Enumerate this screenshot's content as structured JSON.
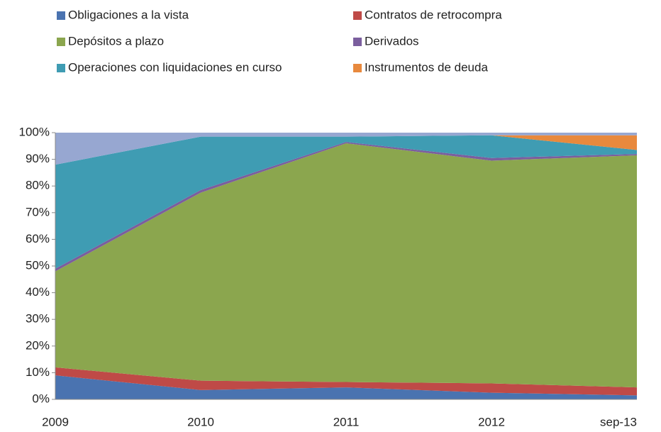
{
  "chart_data": {
    "type": "stacked_area",
    "categories": [
      "2009",
      "2010",
      "2011",
      "2012",
      "sep-13"
    ],
    "series": [
      {
        "name": "Obligaciones a la vista",
        "color": "#4a73b0",
        "values": [
          9,
          3.5,
          4.5,
          2.5,
          1.5
        ]
      },
      {
        "name": "Contratos de retrocompra",
        "color": "#bf4a47",
        "values": [
          3,
          3.5,
          2,
          3.5,
          3
        ]
      },
      {
        "name": "Depósitos a plazo",
        "color": "#8ba64e",
        "values": [
          36,
          70.5,
          89.5,
          83.5,
          87
        ]
      },
      {
        "name": "Derivados",
        "color": "#7b5e9e",
        "values": [
          1,
          1,
          0.5,
          1,
          0.5
        ]
      },
      {
        "name": "Operaciones con liquidaciones en curso",
        "color": "#3f9cb3",
        "values": [
          39,
          20,
          2,
          8.5,
          1.5
        ]
      },
      {
        "name": "Instrumentos de deuda",
        "color": "#e8893d",
        "values": [
          0,
          0,
          0,
          0,
          5.5
        ]
      },
      {
        "color": "#97a7d1",
        "values": [
          12,
          1.5,
          1.5,
          1,
          1
        ]
      }
    ],
    "ylim": [
      0,
      100
    ],
    "yticks": [
      {
        "value": 0,
        "label": "0%"
      },
      {
        "value": 10,
        "label": "10%"
      },
      {
        "value": 20,
        "label": "20%"
      },
      {
        "value": 30,
        "label": "30%"
      },
      {
        "value": 40,
        "label": "40%"
      },
      {
        "value": 50,
        "label": "50%"
      },
      {
        "value": 60,
        "label": "60%"
      },
      {
        "value": 70,
        "label": "70%"
      },
      {
        "value": 80,
        "label": "80%"
      },
      {
        "value": 90,
        "label": "90%"
      },
      {
        "value": 100,
        "label": "100%"
      }
    ]
  }
}
